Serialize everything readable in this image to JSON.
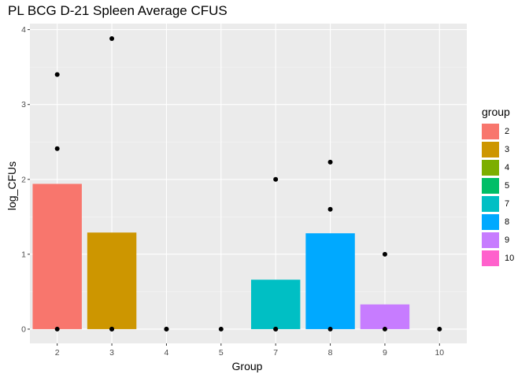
{
  "chart_data": {
    "type": "bar",
    "title": "PL BCG D-21 Spleen Average CFUS",
    "xlabel": "Group",
    "ylabel": "log_CFUs",
    "categories": [
      "2",
      "3",
      "4",
      "5",
      "7",
      "8",
      "9",
      "10"
    ],
    "values": [
      1.94,
      1.29,
      0,
      0,
      0.66,
      1.28,
      0.33,
      0
    ],
    "colors": [
      "#F8766D",
      "#CD9600",
      "#7CAE00",
      "#00BE67",
      "#00BFC4",
      "#00A9FF",
      "#C77CFF",
      "#FF61CC"
    ],
    "points": [
      {
        "x": "2",
        "y": 0
      },
      {
        "x": "2",
        "y": 2.41
      },
      {
        "x": "2",
        "y": 3.4
      },
      {
        "x": "3",
        "y": 0
      },
      {
        "x": "3",
        "y": 0
      },
      {
        "x": "3",
        "y": 3.88
      },
      {
        "x": "4",
        "y": 0
      },
      {
        "x": "4",
        "y": 0
      },
      {
        "x": "5",
        "y": 0
      },
      {
        "x": "7",
        "y": 0
      },
      {
        "x": "7",
        "y": 0
      },
      {
        "x": "7",
        "y": 2.0
      },
      {
        "x": "8",
        "y": 0
      },
      {
        "x": "8",
        "y": 1.6
      },
      {
        "x": "8",
        "y": 2.23
      },
      {
        "x": "9",
        "y": 0
      },
      {
        "x": "9",
        "y": 1.0
      },
      {
        "x": "10",
        "y": 0
      }
    ],
    "yticks": [
      0,
      1,
      2,
      3,
      4
    ],
    "ylim": [
      -0.19,
      4.08
    ],
    "legend": {
      "title": "group",
      "position": "right"
    },
    "grid": true
  }
}
